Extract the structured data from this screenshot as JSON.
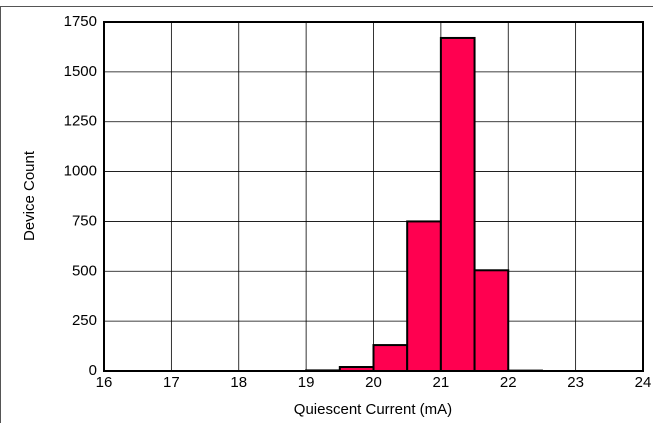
{
  "chart_data": {
    "type": "histogram",
    "xlabel": "Quiescent Current (mA)",
    "ylabel": "Device Count",
    "bins": [
      19,
      19.5,
      20,
      20.5,
      21,
      21.5,
      22,
      22.5
    ],
    "values": [
      3,
      20,
      130,
      750,
      1670,
      505,
      2
    ],
    "color": "#ff0050",
    "xlim": [
      16,
      24
    ],
    "xticks": [
      16,
      17,
      18,
      19,
      20,
      21,
      22,
      23,
      24
    ],
    "ylim": [
      0,
      1750
    ],
    "yticks": [
      0,
      250,
      500,
      750,
      1000,
      1250,
      1500,
      1750
    ],
    "grid": true
  }
}
